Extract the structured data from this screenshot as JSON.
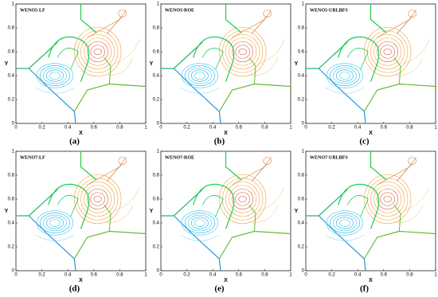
{
  "axes": {
    "x_label": "X",
    "y_label": "Y",
    "x_ticks": [
      "0",
      "0.2",
      "0.4",
      "0.6",
      "0.8",
      "1"
    ],
    "y_ticks": [
      "0",
      "0.2",
      "0.4",
      "0.6",
      "0.8",
      "1"
    ]
  },
  "panels": [
    {
      "title": "WENO5-LF",
      "caption": "(a)"
    },
    {
      "title": "WENO5-ROE",
      "caption": "(b)"
    },
    {
      "title": "WENO5-URLBFS",
      "caption": "(c)"
    },
    {
      "title": "WENO7-LF",
      "caption": "(d)"
    },
    {
      "title": "WENO7-ROE",
      "caption": "(e)"
    },
    {
      "title": "WENO7-URLBFS",
      "caption": "(f)"
    }
  ]
}
